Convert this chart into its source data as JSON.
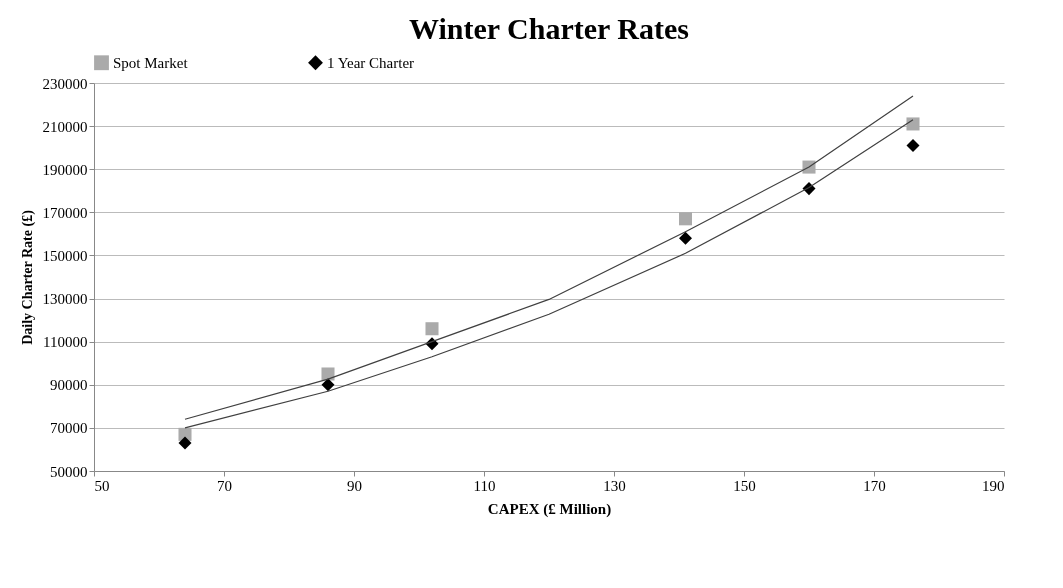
{
  "chart_data": {
    "type": "scatter",
    "title": "Winter Charter Rates",
    "xlabel": "CAPEX (£ Million)",
    "ylabel": "Daily Charter Rate (£)",
    "x": [
      64,
      86,
      102,
      141,
      160,
      176
    ],
    "series": [
      {
        "name": "Spot Market",
        "color": "#aaaaaa",
        "marker": "square",
        "values": [
          67000,
          95000,
          116000,
          167000,
          191000,
          211000
        ]
      },
      {
        "name": "1 Year Charter",
        "color": "#000000",
        "marker": "diamond",
        "values": [
          63000,
          90000,
          109000,
          158000,
          181000,
          201000
        ]
      },
      {
        "type": "line",
        "color": "#404040",
        "x": [
          64,
          86,
          102,
          120,
          141,
          160,
          176
        ],
        "values": [
          74000,
          92600,
          110000,
          129600,
          161000,
          191000,
          224000
        ]
      },
      {
        "type": "line",
        "color": "#404040",
        "x": [
          64,
          86,
          102,
          120,
          141,
          160,
          176
        ],
        "values": [
          70000,
          87000,
          103000,
          122700,
          151000,
          181500,
          213000
        ]
      }
    ],
    "xlim": [
      50,
      190
    ],
    "xticks": [
      50,
      70,
      90,
      110,
      130,
      150,
      170,
      190
    ],
    "ylim": [
      50000,
      230000
    ],
    "yticks": [
      50000,
      70000,
      90000,
      110000,
      130000,
      150000,
      170000,
      190000,
      210000,
      230000
    ],
    "grid": "y",
    "legend": "top"
  }
}
